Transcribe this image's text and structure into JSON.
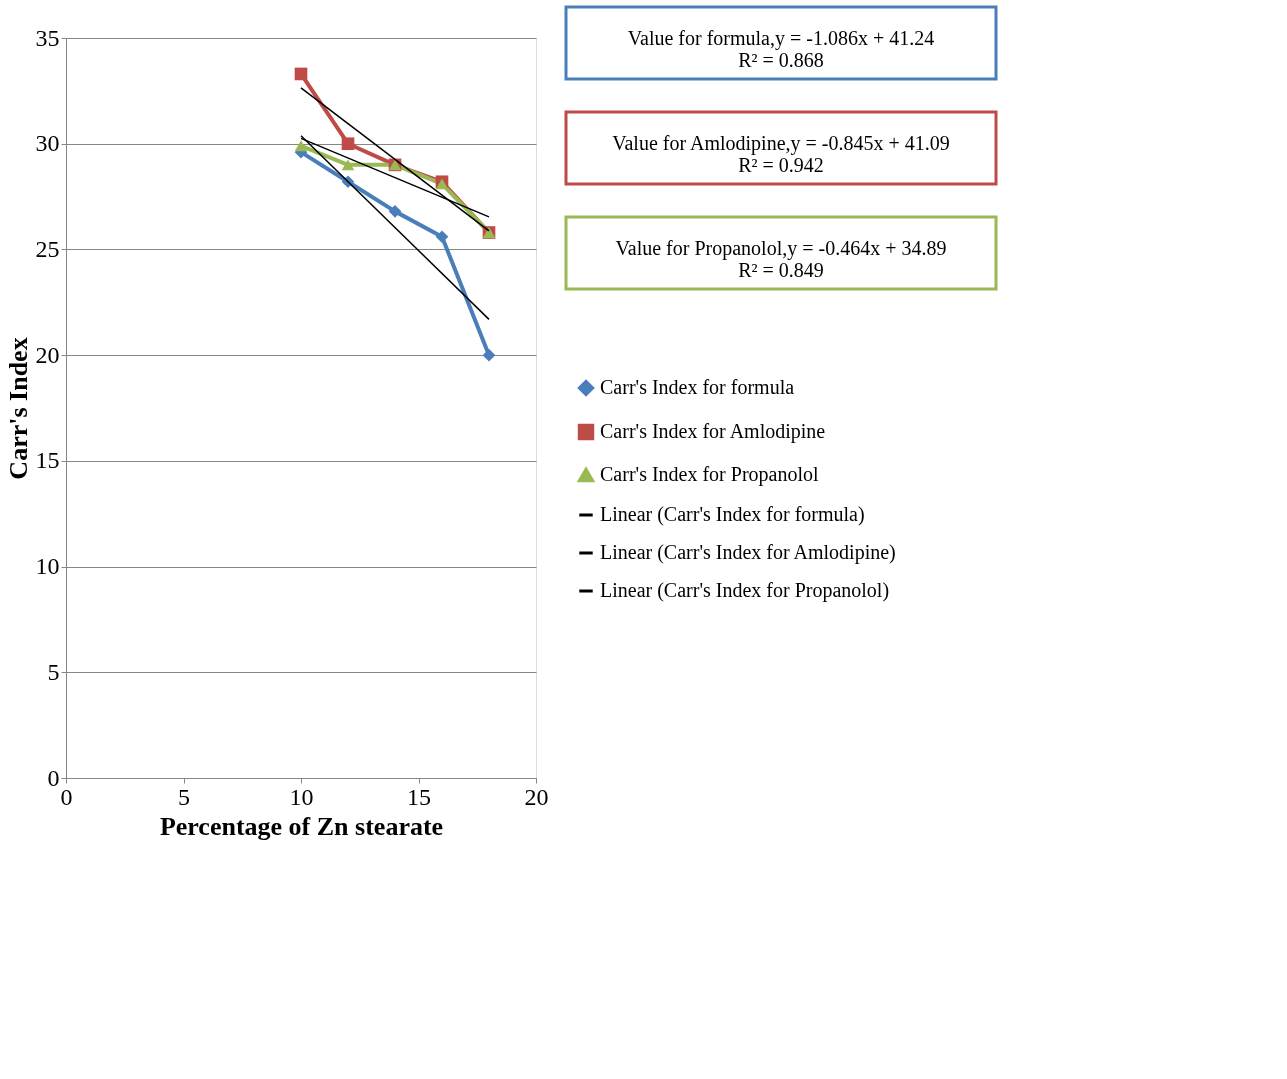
{
  "chart_data": {
    "type": "line",
    "xlabel": "Percentage of Zn stearate",
    "ylabel": "Carr's Index",
    "xlim": [
      0,
      20
    ],
    "xticks": [
      0,
      5,
      10,
      15,
      20
    ],
    "ylim": [
      0,
      35
    ],
    "yticks": [
      0,
      5,
      10,
      15,
      20,
      25,
      30,
      35
    ],
    "grid": "y",
    "legend": "right",
    "series": [
      {
        "name": "Carr's Index for formula",
        "color": "#4a7ebb",
        "marker": "diamond",
        "x": [
          10,
          12,
          14,
          16,
          18
        ],
        "values": [
          29.6,
          28.2,
          26.8,
          25.6,
          20.0
        ]
      },
      {
        "name": "Carr's Index for Amlodipine",
        "color": "#be4b48",
        "marker": "square",
        "x": [
          10,
          12,
          14,
          16,
          18
        ],
        "values": [
          33.3,
          30.0,
          29.0,
          28.2,
          25.8
        ]
      },
      {
        "name": "Carr's Index for Propanolol",
        "color": "#98b954",
        "marker": "triangle",
        "x": [
          10,
          12,
          14,
          16,
          18
        ],
        "values": [
          29.9,
          29.0,
          29.0,
          28.1,
          25.8
        ]
      },
      {
        "name": "Linear (Carr's Index for formula)",
        "color": "#000000",
        "marker": "none",
        "x": [
          10,
          18
        ],
        "values": [
          30.38,
          21.69
        ]
      },
      {
        "name": "Linear (Carr's Index for Amlodipine)",
        "color": "#000000",
        "marker": "none",
        "x": [
          10,
          18
        ],
        "values": [
          32.64,
          25.88
        ]
      },
      {
        "name": "Linear (Carr's Index for Propanolol)",
        "color": "#000000",
        "marker": "none",
        "x": [
          10,
          18
        ],
        "values": [
          30.25,
          26.54
        ]
      }
    ],
    "annotations": [
      "Value for formula,y = -1.086x + 41.24\nR² = 0.868",
      "Value for Amlodipine,y = -0.845x + 41.09\nR² = 0.942",
      "Value for Propanolol,y = -0.464x + 34.89\nR² = 0.849"
    ]
  }
}
